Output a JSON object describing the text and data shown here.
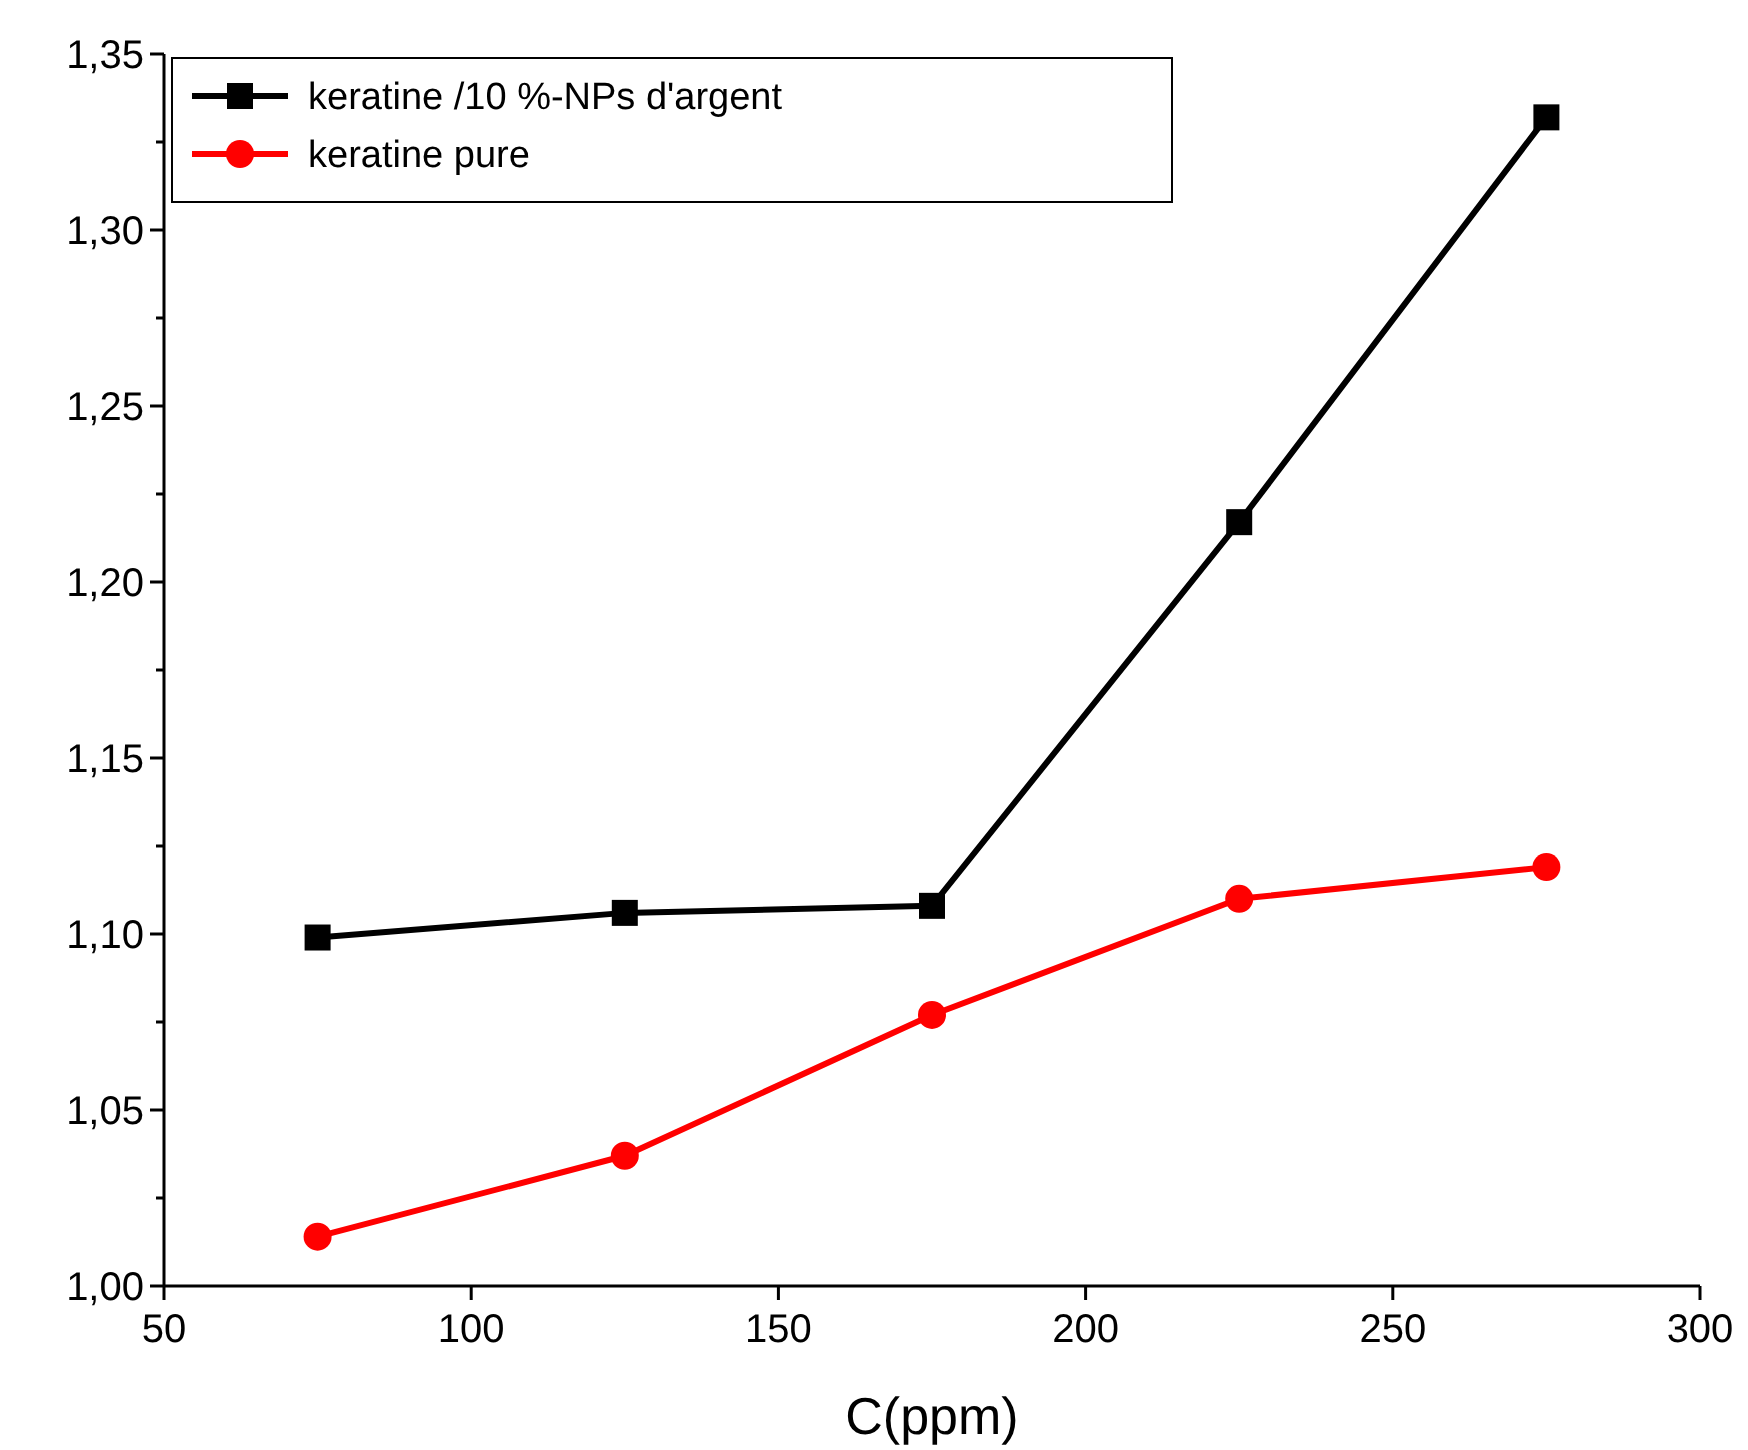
{
  "chart_data": {
    "type": "line",
    "xlabel": "C(ppm)",
    "x": [
      75,
      125,
      175,
      225,
      275
    ],
    "series": [
      {
        "name": "keratine /10 %-NPs d'argent",
        "color": "#000000",
        "marker": "square",
        "values": [
          1.099,
          1.106,
          1.108,
          1.217,
          1.332
        ]
      },
      {
        "name": "keratine pure",
        "color": "#ff0000",
        "marker": "circle",
        "values": [
          1.014,
          1.037,
          1.077,
          1.11,
          1.119
        ]
      }
    ],
    "xlim": [
      50,
      300
    ],
    "xticks": [
      50,
      100,
      150,
      200,
      250,
      300
    ],
    "ylim": [
      1.0,
      1.35
    ],
    "yticks": [
      {
        "value": 1.0,
        "label": "1,00"
      },
      {
        "value": 1.025,
        "label": null
      },
      {
        "value": 1.05,
        "label": "1,05"
      },
      {
        "value": 1.075,
        "label": null
      },
      {
        "value": 1.1,
        "label": "1,10"
      },
      {
        "value": 1.125,
        "label": null
      },
      {
        "value": 1.15,
        "label": "1,15"
      },
      {
        "value": 1.175,
        "label": null
      },
      {
        "value": 1.2,
        "label": "1,20"
      },
      {
        "value": 1.225,
        "label": null
      },
      {
        "value": 1.25,
        "label": "1,25"
      },
      {
        "value": 1.275,
        "label": null
      },
      {
        "value": 1.3,
        "label": "1,30"
      },
      {
        "value": 1.325,
        "label": null
      },
      {
        "value": 1.35,
        "label": "1,35"
      }
    ],
    "legend": "top left",
    "grid": false,
    "line_style": "solid"
  }
}
